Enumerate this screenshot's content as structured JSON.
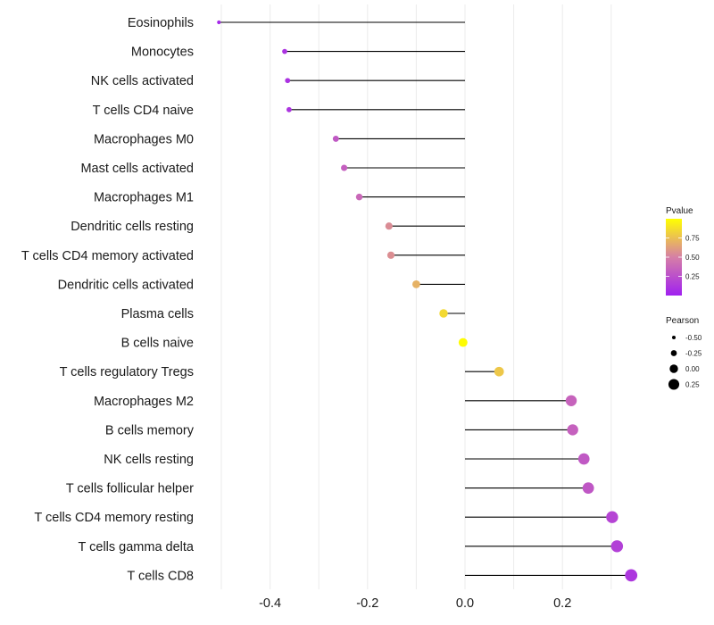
{
  "chart_data": {
    "type": "scatter",
    "subtype": "lollipop",
    "title": "",
    "xlabel": "",
    "ylabel": "",
    "xlim": [
      -0.52,
      0.36
    ],
    "x_ticks": [
      -0.4,
      -0.2,
      0.0,
      0.2
    ],
    "x_tick_labels": [
      "-0.4",
      "-0.2",
      "0.0",
      "0.2"
    ],
    "x_minor_grid": [
      -0.5,
      -0.3,
      -0.1,
      0.1,
      0.3
    ],
    "grid": true,
    "categories": [
      "Eosinophils",
      "Monocytes",
      "NK cells activated",
      "T cells CD4 naive",
      "Macrophages M0",
      "Mast cells activated",
      "Macrophages M1",
      "Dendritic cells resting",
      "T cells CD4 memory activated",
      "Dendritic cells activated",
      "Plasma cells",
      "B cells naive",
      "T cells regulatory  Tregs ",
      "Macrophages M2",
      "B cells memory",
      "NK cells resting",
      "T cells follicular helper",
      "T cells CD4 memory resting",
      "T cells gamma delta",
      "T cells CD8"
    ],
    "pearson": [
      -0.505,
      -0.37,
      -0.364,
      -0.361,
      -0.265,
      -0.248,
      -0.217,
      -0.156,
      -0.152,
      -0.1,
      -0.044,
      -0.004,
      0.07,
      0.218,
      0.221,
      0.244,
      0.253,
      0.302,
      0.312,
      0.341
    ],
    "pvalue": [
      0.05,
      0.1,
      0.1,
      0.11,
      0.3,
      0.33,
      0.38,
      0.55,
      0.56,
      0.7,
      0.85,
      0.99,
      0.78,
      0.35,
      0.34,
      0.3,
      0.29,
      0.19,
      0.17,
      0.12
    ],
    "legend": {
      "color": {
        "title": "Pvalue",
        "ticks": [
          0.25,
          0.5,
          0.75
        ],
        "tick_labels": [
          "0.25",
          "0.50",
          "0.75"
        ],
        "range": [
          0,
          1
        ],
        "low_color": "#a020f0",
        "mid_color": "#d67fa6",
        "high_color": "#ffff00"
      },
      "size": {
        "title": "Pearson",
        "values": [
          -0.5,
          -0.25,
          0.0,
          0.25
        ],
        "labels": [
          "-0.50",
          "-0.25",
          "0.00",
          "0.25"
        ]
      },
      "placement": "right"
    }
  }
}
